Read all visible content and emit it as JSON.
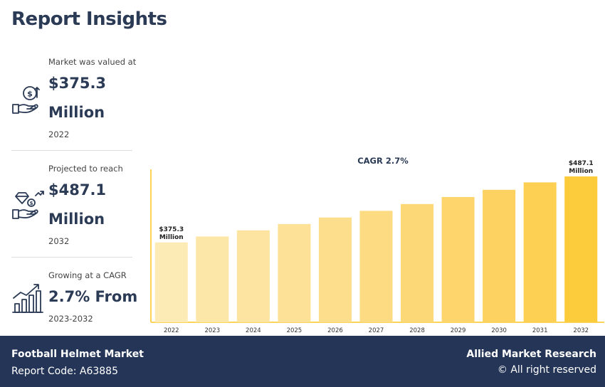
{
  "header": {
    "title": "Report Insights"
  },
  "stats": [
    {
      "label": "Market was valued at",
      "value_line1": "$375.3",
      "value_line2": "Million",
      "sub": "2022",
      "icon": "money-hand-icon"
    },
    {
      "label": "Projected to reach",
      "value_line1": "$487.1",
      "value_line2": "Million",
      "sub": "2032",
      "icon": "diamond-hand-icon"
    },
    {
      "label": "Growing at a CAGR",
      "value_line1": "2.7% From",
      "sub": "2023-2032",
      "icon": "growth-chart-icon"
    }
  ],
  "chart_data": {
    "type": "bar",
    "title": "CAGR 2.7%",
    "categories": [
      "2022",
      "2023",
      "2024",
      "2025",
      "2026",
      "2027",
      "2028",
      "2029",
      "2030",
      "2031",
      "2032"
    ],
    "values": [
      375.3,
      385.4,
      395.8,
      406.5,
      417.5,
      428.8,
      440.3,
      452.2,
      464.4,
      477.0,
      487.1
    ],
    "data_labels": [
      {
        "index": 0,
        "line1": "$375.3",
        "line2": "Million"
      },
      {
        "index": 10,
        "line1": "$487.1",
        "line2": "Million"
      }
    ],
    "colors": [
      "#fdebb6",
      "#fde7a8",
      "#fde4a0",
      "#fde197",
      "#fdde8c",
      "#fddb82",
      "#fdd877",
      "#fdd56c",
      "#fdd260",
      "#fdcf52",
      "#fdcc3c"
    ],
    "axis_color": "#fcd45a"
  },
  "footer": {
    "market_name": "Football Helmet Market",
    "report_code": "Report Code: A63885",
    "company": "Allied Market Research",
    "rights": "© All right reserved"
  }
}
